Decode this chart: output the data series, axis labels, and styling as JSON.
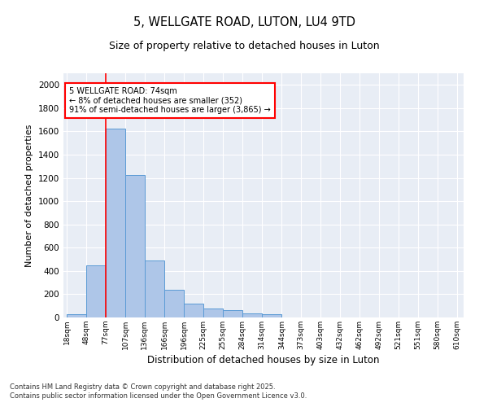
{
  "title1": "5, WELLGATE ROAD, LUTON, LU4 9TD",
  "title2": "Size of property relative to detached houses in Luton",
  "xlabel": "Distribution of detached houses by size in Luton",
  "ylabel": "Number of detached properties",
  "bins": [
    18,
    48,
    77,
    107,
    136,
    166,
    196,
    225,
    255,
    284,
    314,
    344,
    373,
    403,
    432,
    462,
    492,
    521,
    551,
    580,
    610
  ],
  "bar_heights": [
    30,
    450,
    1625,
    1225,
    490,
    240,
    120,
    80,
    65,
    35,
    25,
    0,
    0,
    0,
    0,
    0,
    0,
    0,
    0,
    0
  ],
  "bar_color": "#aec6e8",
  "bar_edge_color": "#5b9bd5",
  "bg_color": "#e8edf5",
  "grid_color": "#ffffff",
  "red_line_x": 77,
  "annotation_line1": "5 WELLGATE ROAD: 74sqm",
  "annotation_line2": "← 8% of detached houses are smaller (352)",
  "annotation_line3": "91% of semi-detached houses are larger (3,865) →",
  "ylim": [
    0,
    2100
  ],
  "yticks": [
    0,
    200,
    400,
    600,
    800,
    1000,
    1200,
    1400,
    1600,
    1800,
    2000
  ],
  "footnote1": "Contains HM Land Registry data © Crown copyright and database right 2025.",
  "footnote2": "Contains public sector information licensed under the Open Government Licence v3.0."
}
